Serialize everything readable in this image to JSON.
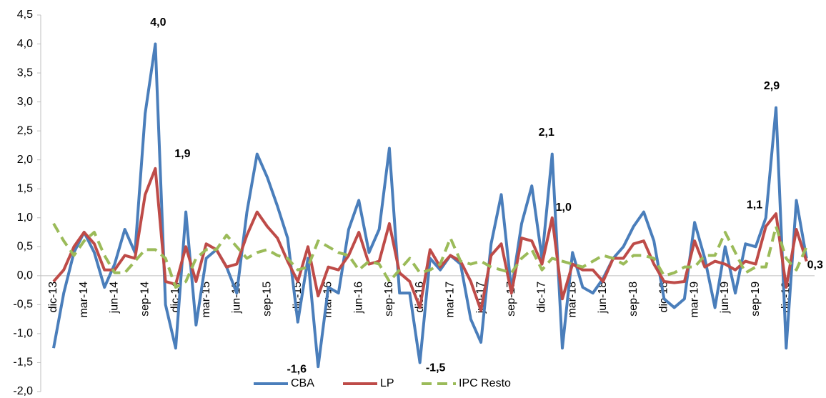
{
  "chart_data": {
    "type": "line",
    "categories": [
      "dic-13",
      null,
      null,
      "mar-14",
      null,
      null,
      "jun-14",
      null,
      null,
      "sep-14",
      null,
      null,
      "dic-14",
      null,
      null,
      "mar-15",
      null,
      null,
      "jun-15",
      null,
      null,
      "sep-15",
      null,
      null,
      "dic-15",
      null,
      null,
      "mar-16",
      null,
      null,
      "jun-16",
      null,
      null,
      "sep-16",
      null,
      null,
      "dic-16",
      null,
      null,
      "mar-17",
      null,
      null,
      "jun-17",
      null,
      null,
      "sep-17",
      null,
      null,
      "dic-17",
      null,
      null,
      "mar-18",
      null,
      null,
      "jun-18",
      null,
      null,
      "sep-18",
      null,
      null,
      "dic-18",
      null,
      null,
      "mar-19",
      null,
      null,
      "jun-19",
      null,
      null,
      "sep-19",
      null,
      null,
      "dic-19",
      null,
      null
    ],
    "series": [
      {
        "name": "CBA",
        "color": "#4a7ebb",
        "dashed": false,
        "values": [
          -1.25,
          -0.3,
          0.4,
          0.75,
          0.4,
          -0.2,
          0.2,
          0.8,
          0.4,
          2.8,
          4.0,
          -0.5,
          -1.25,
          1.1,
          -0.85,
          0.3,
          0.45,
          0.15,
          -0.3,
          1.1,
          2.1,
          1.7,
          1.2,
          0.65,
          -0.8,
          0.3,
          -1.57,
          -0.2,
          -0.3,
          0.8,
          1.3,
          0.4,
          0.8,
          2.2,
          -0.3,
          -0.3,
          -1.5,
          0.3,
          0.1,
          0.35,
          0.2,
          -0.75,
          -1.15,
          0.55,
          1.4,
          -0.25,
          0.9,
          1.55,
          0.3,
          2.1,
          -1.25,
          0.4,
          -0.2,
          -0.3,
          -0.05,
          0.3,
          0.5,
          0.85,
          1.1,
          0.6,
          -0.4,
          -0.55,
          -0.4,
          0.92,
          0.3,
          -0.55,
          0.5,
          -0.3,
          0.55,
          0.5,
          1.0,
          2.9,
          -1.25,
          1.3,
          0.3
        ],
        "value_labels": [
          null,
          null,
          null,
          null,
          null,
          null,
          null,
          null,
          null,
          null,
          "4,0",
          null,
          null,
          null,
          null,
          null,
          null,
          null,
          null,
          null,
          null,
          null,
          null,
          null,
          null,
          null,
          "-1,6",
          null,
          null,
          null,
          null,
          null,
          null,
          null,
          null,
          null,
          "-1,5",
          null,
          null,
          null,
          null,
          null,
          null,
          null,
          null,
          null,
          null,
          null,
          null,
          "2,1",
          null,
          null,
          null,
          null,
          null,
          null,
          null,
          null,
          null,
          null,
          null,
          null,
          null,
          null,
          null,
          null,
          null,
          null,
          null,
          null,
          null,
          "2,9",
          null,
          null,
          "0,3"
        ]
      },
      {
        "name": "LP",
        "color": "#be4b48",
        "dashed": false,
        "values": [
          -0.1,
          0.1,
          0.5,
          0.75,
          0.55,
          0.1,
          0.1,
          0.35,
          0.3,
          1.4,
          1.85,
          -0.1,
          -0.15,
          0.5,
          -0.1,
          0.55,
          0.45,
          0.15,
          0.2,
          0.7,
          1.1,
          0.85,
          0.65,
          0.25,
          -0.1,
          0.5,
          -0.35,
          0.15,
          0.1,
          0.35,
          0.75,
          0.2,
          0.25,
          0.9,
          0.05,
          -0.1,
          -0.55,
          0.45,
          0.15,
          0.35,
          0.25,
          -0.1,
          -0.6,
          0.35,
          0.55,
          -0.3,
          0.65,
          0.6,
          0.2,
          1.0,
          -0.4,
          0.2,
          0.1,
          0.1,
          -0.1,
          0.3,
          0.3,
          0.55,
          0.6,
          0.2,
          -0.1,
          -0.12,
          -0.1,
          0.6,
          0.15,
          0.25,
          0.2,
          0.1,
          0.25,
          0.2,
          0.85,
          1.07,
          -0.2,
          0.8,
          0.25
        ],
        "value_labels": [
          null,
          null,
          null,
          null,
          null,
          null,
          null,
          null,
          null,
          null,
          "1,9",
          null,
          null,
          null,
          null,
          null,
          null,
          null,
          null,
          null,
          null,
          null,
          null,
          null,
          null,
          null,
          null,
          null,
          null,
          null,
          null,
          null,
          null,
          null,
          null,
          null,
          null,
          null,
          null,
          null,
          null,
          null,
          null,
          null,
          null,
          null,
          null,
          null,
          null,
          "1,0",
          null,
          null,
          null,
          null,
          null,
          null,
          null,
          null,
          null,
          null,
          null,
          null,
          null,
          null,
          null,
          null,
          null,
          null,
          null,
          null,
          null,
          "1,1",
          null,
          null,
          null
        ]
      },
      {
        "name": "IPC Resto",
        "color": "#9bbb59",
        "dashed": true,
        "values": [
          0.9,
          0.6,
          0.35,
          0.6,
          0.75,
          0.35,
          0.05,
          0.05,
          0.25,
          0.45,
          0.45,
          0.3,
          -0.2,
          -0.1,
          0.3,
          0.45,
          0.45,
          0.7,
          0.5,
          0.3,
          0.4,
          0.45,
          0.35,
          0.3,
          0.1,
          0.15,
          0.6,
          0.5,
          0.4,
          0.35,
          0.1,
          0.25,
          0.2,
          -0.1,
          0.1,
          0.3,
          0.05,
          0.1,
          0.2,
          0.65,
          0.25,
          0.2,
          0.25,
          0.15,
          0.1,
          0.05,
          0.3,
          0.45,
          0.1,
          0.3,
          0.25,
          0.2,
          0.15,
          0.25,
          0.35,
          0.3,
          0.2,
          0.35,
          0.35,
          0.3,
          0.0,
          0.05,
          0.15,
          0.15,
          0.35,
          0.35,
          0.75,
          0.4,
          0.05,
          0.15,
          0.15,
          0.85,
          0.3,
          0.1,
          0.5
        ]
      }
    ],
    "ylim": [
      -2.0,
      4.5
    ],
    "yticks": [
      {
        "value": -2.0,
        "label": "-2,0"
      },
      {
        "value": -1.5,
        "label": "-1,5"
      },
      {
        "value": -1.0,
        "label": "-1,0"
      },
      {
        "value": -0.5,
        "label": "-0,5"
      },
      {
        "value": 0.0,
        "label": "0,0"
      },
      {
        "value": 0.5,
        "label": "0,5"
      },
      {
        "value": 1.0,
        "label": "1,0"
      },
      {
        "value": 1.5,
        "label": "1,5"
      },
      {
        "value": 2.0,
        "label": "2,0"
      },
      {
        "value": 2.5,
        "label": "2,5"
      },
      {
        "value": 3.0,
        "label": "3,0"
      },
      {
        "value": 3.5,
        "label": "3,5"
      },
      {
        "value": 4.0,
        "label": "4,0"
      },
      {
        "value": 4.5,
        "label": "4,5"
      }
    ],
    "legend": "bottom"
  }
}
